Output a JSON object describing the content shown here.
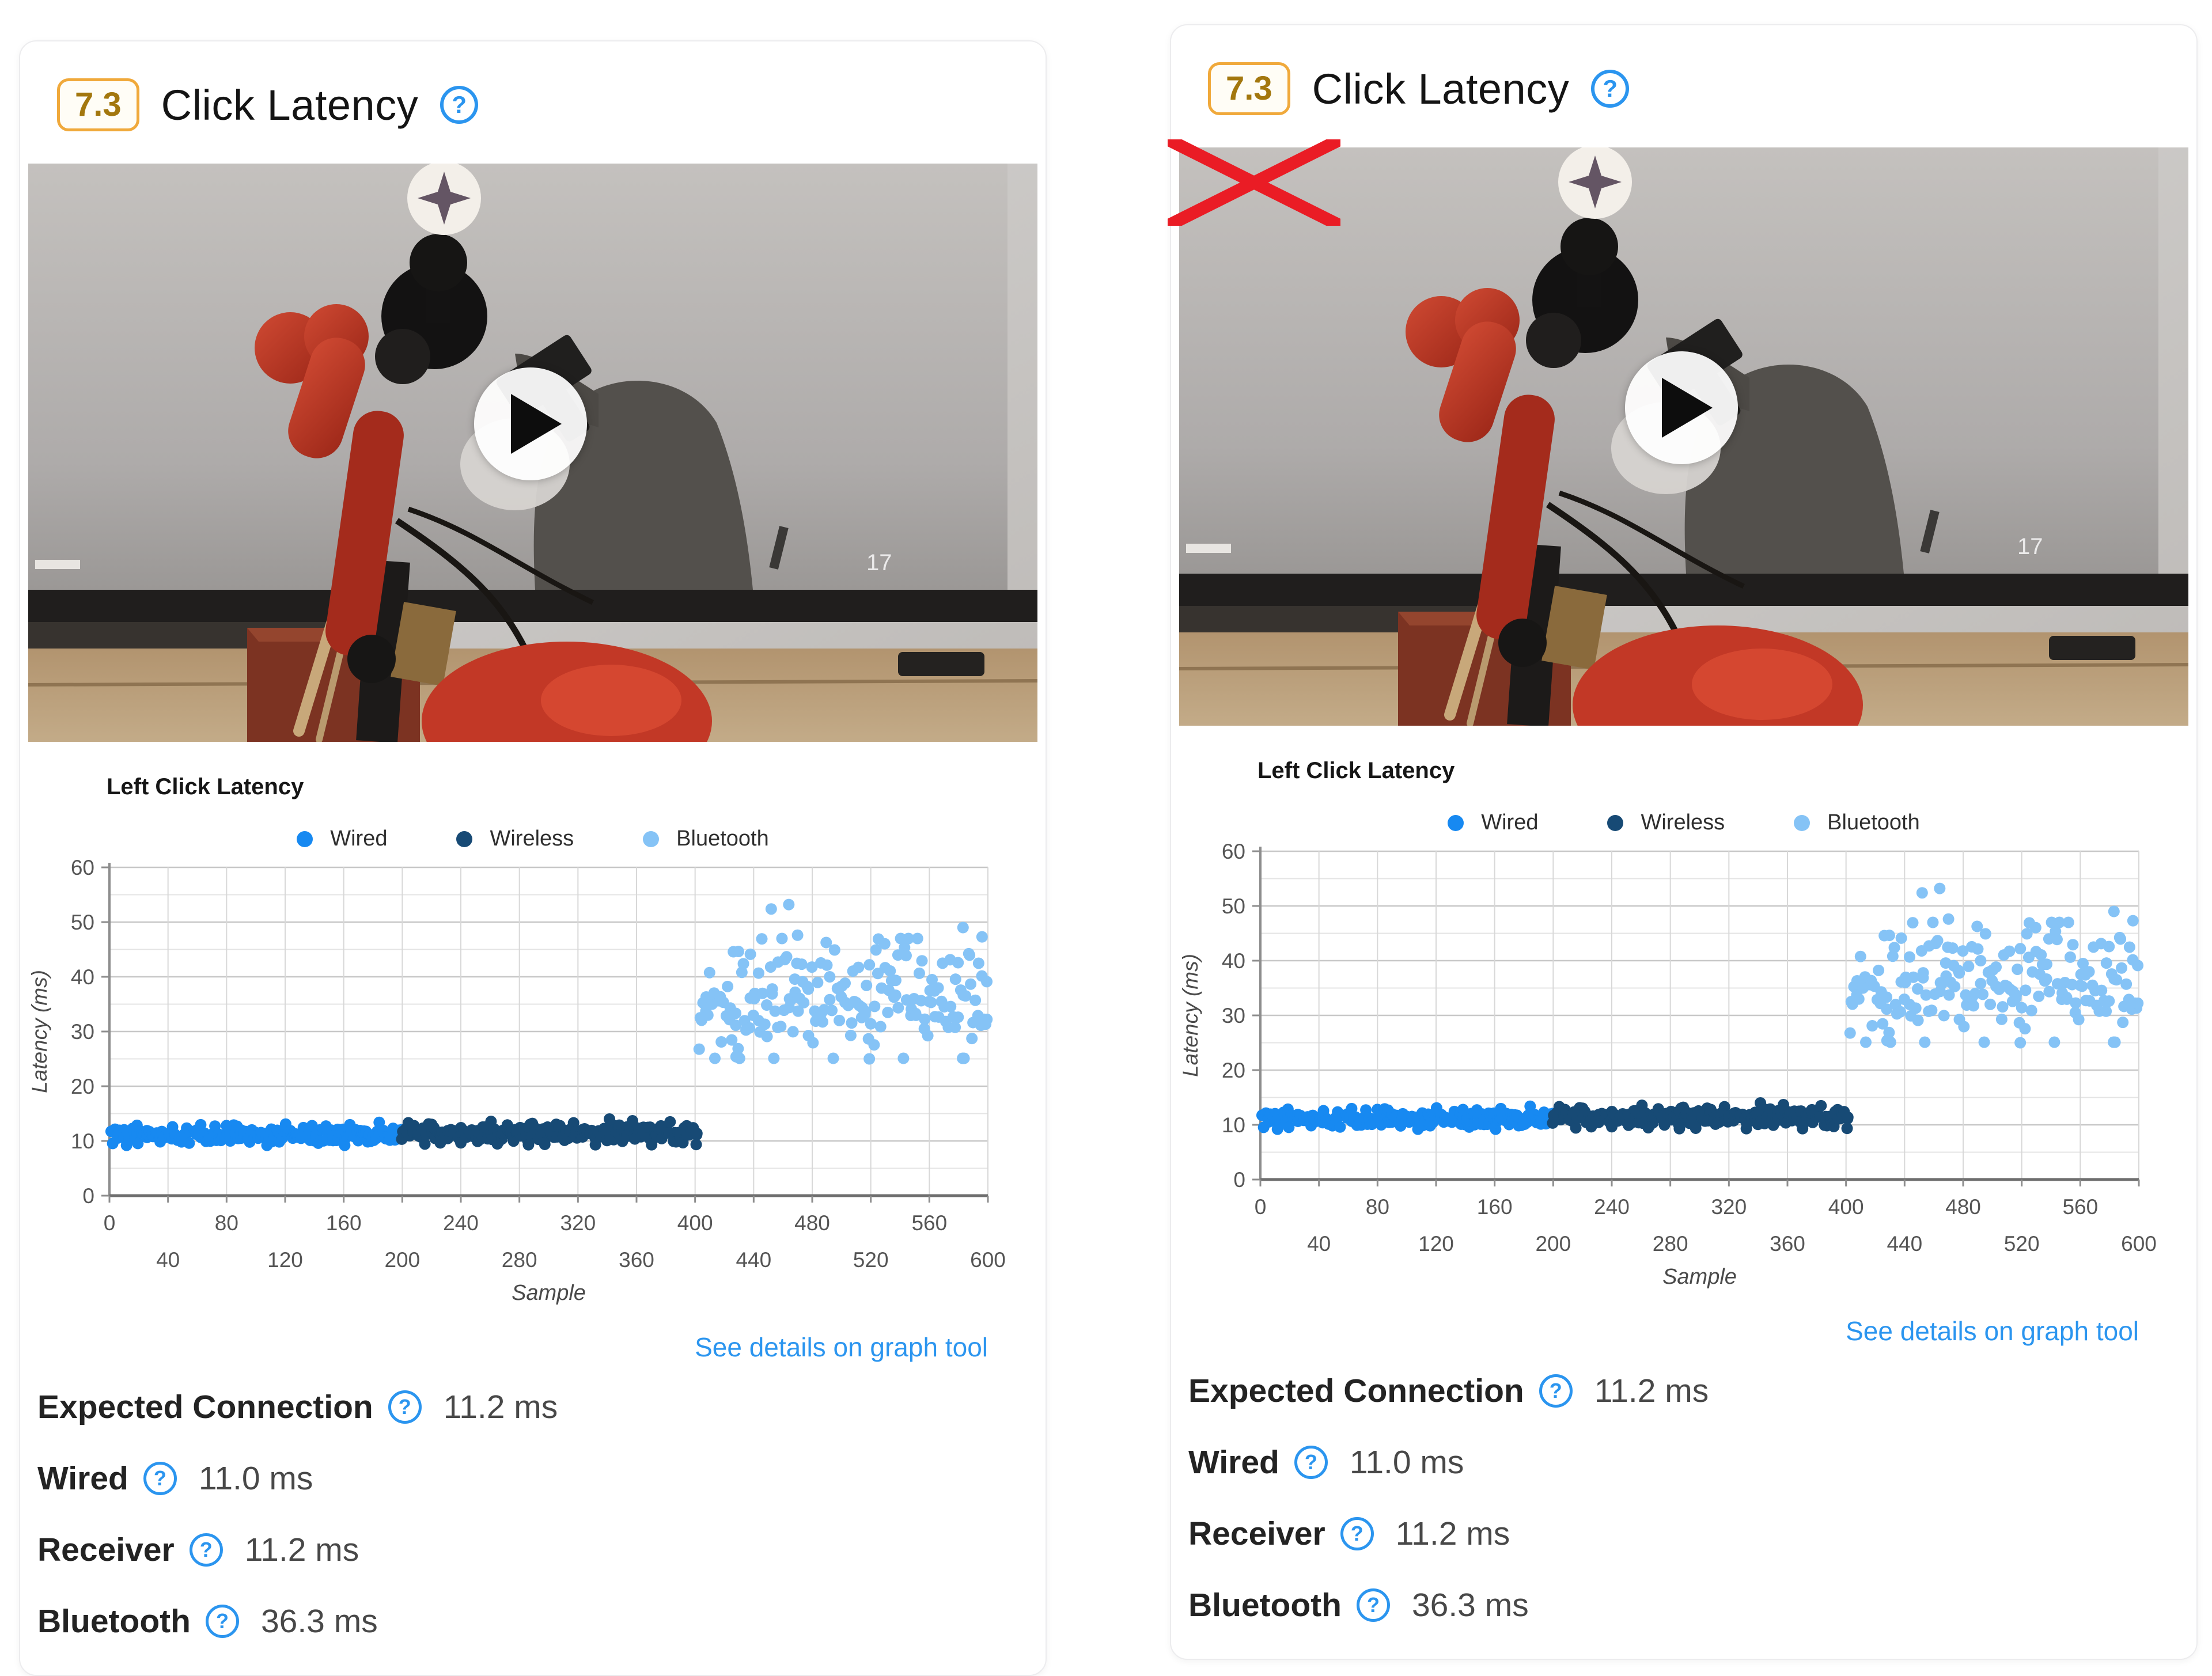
{
  "panels": [
    {
      "score": "7.3",
      "title": "Click Latency",
      "help_symbol": "?",
      "video": {
        "crossed_out": false,
        "timestamp_overlay": "17"
      },
      "link": "See details on graph tool",
      "stats": [
        {
          "label": "Expected Connection",
          "value": "11.2 ms"
        },
        {
          "label": "Wired",
          "value": "11.0 ms"
        },
        {
          "label": "Receiver",
          "value": "11.2 ms"
        },
        {
          "label": "Bluetooth",
          "value": "36.3 ms"
        }
      ]
    },
    {
      "score": "7.3",
      "title": "Click Latency",
      "help_symbol": "?",
      "video": {
        "crossed_out": true,
        "timestamp_overlay": "17"
      },
      "link": "See details on graph tool",
      "stats": [
        {
          "label": "Expected Connection",
          "value": "11.2 ms"
        },
        {
          "label": "Wired",
          "value": "11.0 ms"
        },
        {
          "label": "Receiver",
          "value": "11.2 ms"
        },
        {
          "label": "Bluetooth",
          "value": "36.3 ms"
        }
      ]
    }
  ],
  "chart_data": {
    "type": "scatter",
    "title": "Left Click Latency",
    "xlabel": "Sample",
    "ylabel": "Latency (ms)",
    "xlim": [
      0,
      600
    ],
    "ylim": [
      0,
      60
    ],
    "x_gridline_step": 40,
    "y_gridline_step": 5,
    "y_major_step": 10,
    "xticks_row1": [
      0,
      80,
      160,
      240,
      320,
      400,
      480,
      560
    ],
    "xticks_row2": [
      40,
      120,
      200,
      280,
      360,
      440,
      520,
      600
    ],
    "yticks": [
      0,
      10,
      20,
      30,
      40,
      50,
      60
    ],
    "grid": true,
    "legend_position": "top-center",
    "legend": [
      {
        "name": "Wired",
        "color": "#1789f1"
      },
      {
        "name": "Wireless",
        "color": "#174a75"
      },
      {
        "name": "Bluetooth",
        "color": "#85c3f6"
      }
    ],
    "series": [
      {
        "name": "Wired",
        "color": "#1789f1",
        "x_range": [
          1,
          200
        ],
        "count": 210,
        "y_center": 11.1,
        "y_spread": 0.85,
        "y_clip": [
          9.2,
          13.4
        ],
        "dist": "normal"
      },
      {
        "name": "Wireless",
        "color": "#174a75",
        "x_range": [
          200,
          402
        ],
        "count": 210,
        "y_center": 11.5,
        "y_spread": 0.95,
        "y_clip": [
          9.3,
          14.2
        ],
        "dist": "normal"
      },
      {
        "name": "Bluetooth",
        "color": "#85c3f6",
        "x_range": [
          403,
          600
        ],
        "count": 190,
        "y_center": 35.6,
        "y_spread": 5.2,
        "y_clip": [
          25.1,
          47.0
        ],
        "dist": "normal",
        "extra_points": [
          [
            452,
            52.4
          ],
          [
            464,
            53.2
          ],
          [
            583,
            49.0
          ],
          [
            470,
            47.6
          ],
          [
            596,
            47.3
          ],
          [
            428,
            25.4
          ],
          [
            519,
            25.0
          ]
        ]
      }
    ],
    "point_radius": 10,
    "seed": 42,
    "summary": {
      "expected_connection_ms": 11.2,
      "wired_ms": 11.0,
      "receiver_ms": 11.2,
      "bluetooth_ms": 36.3
    }
  },
  "colors": {
    "badge_border": "#f0a93b",
    "badge_text": "#a3770e",
    "help_icon": "#2b95ef",
    "link": "#2b95ef",
    "red_cross": "#ea1c25"
  }
}
